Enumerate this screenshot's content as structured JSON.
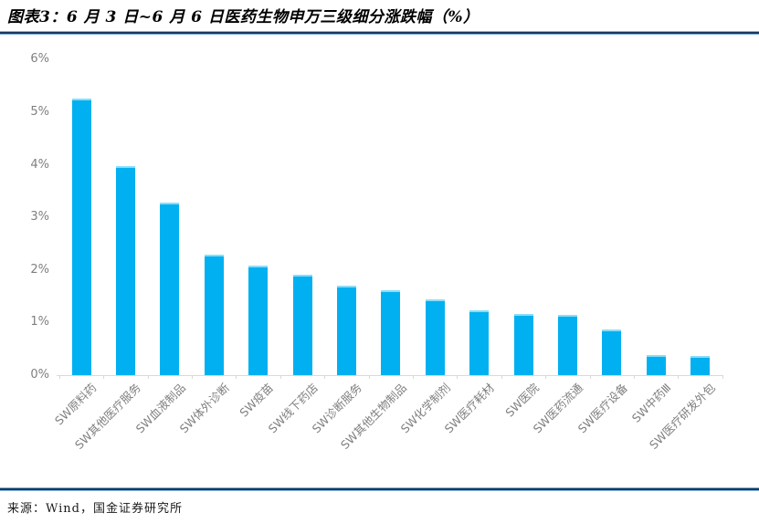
{
  "header": {
    "title": "图表3：6 月 3 日~6 月 6 日医药生物申万三级细分涨跌幅（%）"
  },
  "footer": {
    "source": "来源：Wind，国金证券研究所"
  },
  "colors": {
    "bar": "#00B0F0",
    "bar_top_highlight": "#8ADCF8",
    "rule_dark": "#17375E",
    "rule_light": "#7EB3D8",
    "axis_text": "#7F7F7F",
    "axis_line": "#D9D9D9",
    "title_text": "#000000",
    "source_text": "#1A1A1A",
    "background": "#FFFFFF"
  },
  "chart_data": {
    "type": "bar",
    "title": "6 月 3 日~6 月 6 日医药生物申万三级细分涨跌幅（%）",
    "categories": [
      "SW原料药",
      "SW其他医疗服务",
      "SW血液制品",
      "SW体外诊断",
      "SW疫苗",
      "SW线下药店",
      "SW诊断服务",
      "SW其他生物制品",
      "SW化学制剂",
      "SW医疗耗材",
      "SW医院",
      "SW医药流通",
      "SW医疗设备",
      "SW中药Ⅲ",
      "SW医疗研发外包"
    ],
    "values": [
      5.26,
      3.97,
      3.28,
      2.29,
      2.09,
      1.91,
      1.71,
      1.62,
      1.44,
      1.24,
      1.16,
      1.14,
      0.87,
      0.38,
      0.36
    ],
    "unit": "%",
    "ylabel": "",
    "xlabel": "",
    "ylim": [
      0,
      6
    ],
    "ytick_values": [
      0,
      1,
      2,
      3,
      4,
      5,
      6
    ],
    "ytick_labels": [
      "0%",
      "1%",
      "2%",
      "3%",
      "4%",
      "5%",
      "6%"
    ],
    "grid": false,
    "legend": "none",
    "bar_color": "#00B0F0"
  }
}
